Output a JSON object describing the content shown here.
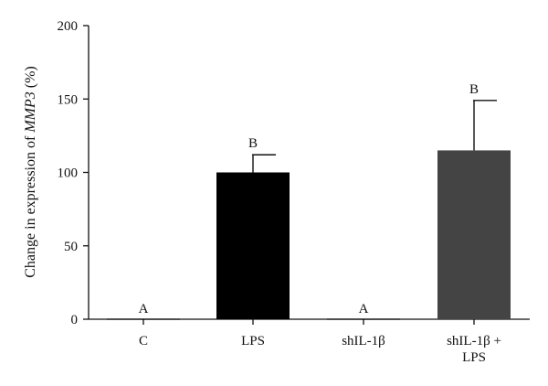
{
  "chart_data": {
    "type": "bar",
    "title": "",
    "xlabel": "",
    "ylabel": {
      "prefix": "Change in expression of ",
      "gene": "MMP3",
      "suffix": " (%)"
    },
    "ylim": [
      0,
      200
    ],
    "yticks": [
      "0",
      "50",
      "100",
      "150",
      "200"
    ],
    "grid": false,
    "categories": [
      {
        "lines": [
          "C"
        ]
      },
      {
        "lines": [
          "LPS"
        ]
      },
      {
        "lines": [
          "shIL-1β"
        ]
      },
      {
        "lines": [
          "shIL-1β +",
          "LPS"
        ]
      }
    ],
    "values": [
      0,
      100,
      0,
      115
    ],
    "error": [
      0,
      12,
      0,
      34
    ],
    "significance": [
      "A",
      "B",
      "A",
      "B"
    ],
    "colors": [
      "#000000",
      "#000000",
      "#000000",
      "#444444"
    ]
  }
}
